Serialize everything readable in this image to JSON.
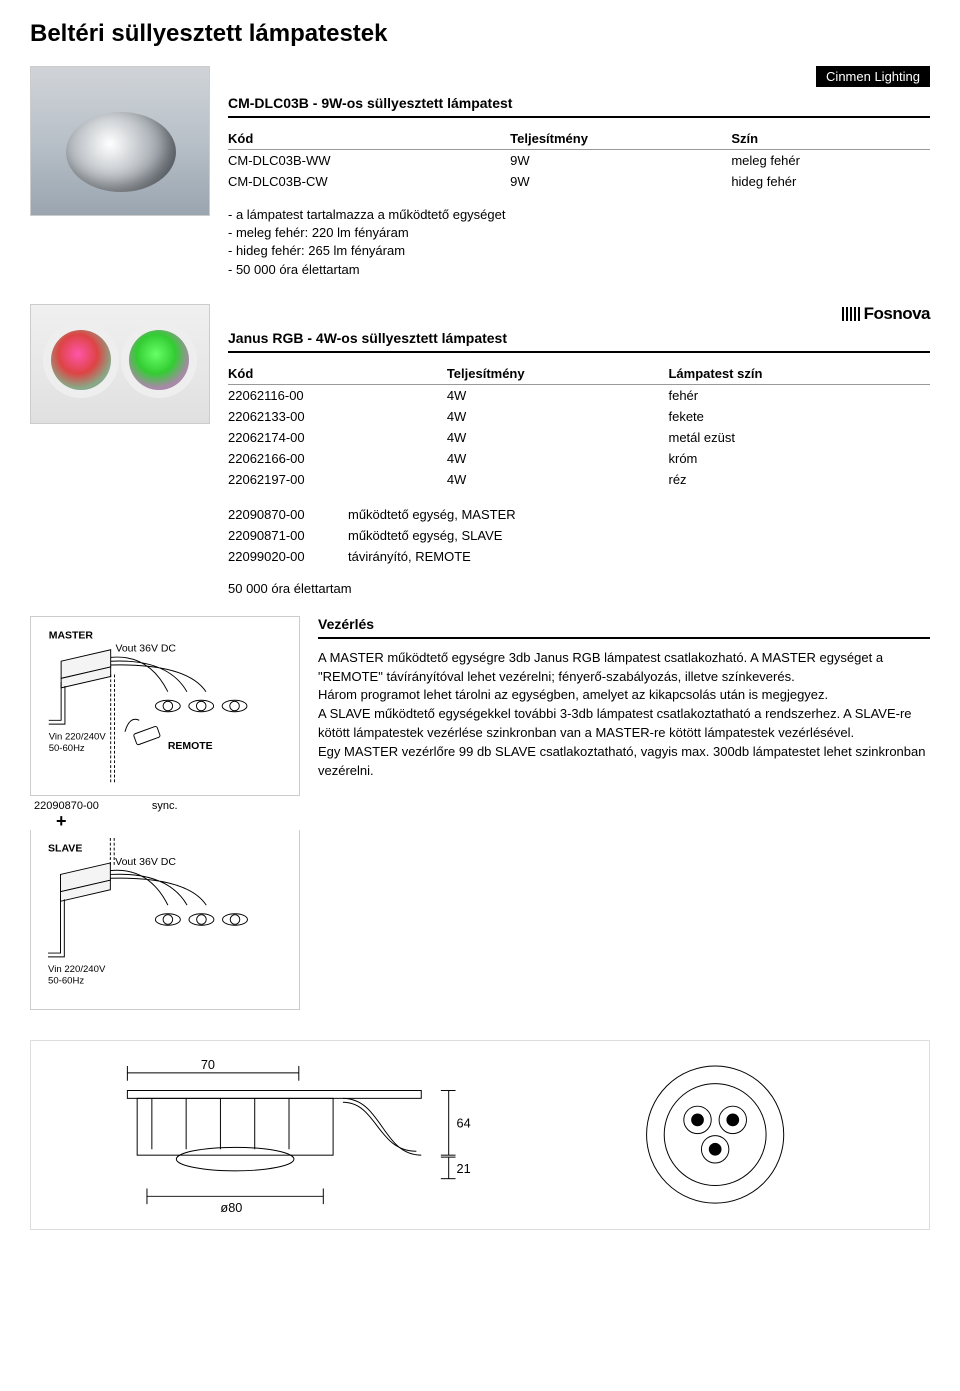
{
  "pageTitle": "Beltéri süllyesztett lámpatestek",
  "brand1": "Cinmen Lighting",
  "section1": {
    "title": "CM-DLC03B - 9W-os süllyesztett lámpatest",
    "headers": [
      "Kód",
      "Teljesítmény",
      "Szín"
    ],
    "rows": [
      [
        "CM-DLC03B-WW",
        "9W",
        "meleg fehér"
      ],
      [
        "CM-DLC03B-CW",
        "9W",
        "hideg fehér"
      ]
    ],
    "specs": [
      "a lámpatest tartalmazza a működtető egységet",
      "meleg fehér: 220 lm fényáram",
      "hideg fehér: 265 lm fényáram",
      "50 000 óra élettartam"
    ]
  },
  "brand2": "Fosnova",
  "section2": {
    "title": "Janus RGB - 4W-os süllyesztett lámpatest",
    "headers": [
      "Kód",
      "Teljesítmény",
      "Lámpatest szín"
    ],
    "rows": [
      [
        "22062116-00",
        "4W",
        "fehér"
      ],
      [
        "22062133-00",
        "4W",
        "fekete"
      ],
      [
        "22062174-00",
        "4W",
        "metál ezüst"
      ],
      [
        "22062166-00",
        "4W",
        "króm"
      ],
      [
        "22062197-00",
        "4W",
        "réz"
      ]
    ],
    "accessories": [
      [
        "22090870-00",
        "működtető egység, MASTER"
      ],
      [
        "22090871-00",
        "működtető egység, SLAVE"
      ],
      [
        "22099020-00",
        "távirányító, REMOTE"
      ]
    ],
    "note": "50 000 óra élettartam"
  },
  "diagram": {
    "master": "MASTER",
    "slave": "SLAVE",
    "vout": "Vout 36V DC",
    "vin1": "Vin 220/240V",
    "vin2": "50-60Hz",
    "remote": "REMOTE",
    "sync": "sync.",
    "partno": "22090870-00",
    "plus": "+"
  },
  "vezerles": {
    "title": "Vezérlés",
    "paragraphs": [
      "A MASTER működtető egységre 3db Janus RGB lámpatest csatlakozható. A MASTER egységet a \"REMOTE\" távírányítóval lehet vezérelni; fényerő-szabályozás, illetve színkeverés.",
      "Három programot lehet tárolni az egységben, amelyet az kikapcsolás után is megjegyez.",
      "A SLAVE működtető egységekkel további 3-3db lámpatest csatlakoztatható a rendszerhez. A SLAVE-re kötött lámpatestek vezérlése szinkronban van a MASTER-re kötött lámpatestek vezérlésével.",
      "Egy MASTER vezérlőre 99 db SLAVE csatlakoztatható, vagyis max. 300db lámpatestet lehet szinkronban vezérelni."
    ]
  },
  "techDrawing": {
    "dim1": "70",
    "dim2": "64",
    "dim3": "21",
    "cutout": "ø80"
  }
}
